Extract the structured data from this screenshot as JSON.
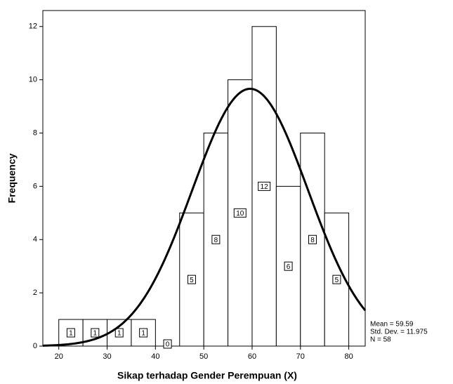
{
  "chart_data": {
    "type": "histogram",
    "x_label": "Sikap terhadap Gender Perempuan (X)",
    "y_label": "Frequency",
    "bins": [
      20,
      25,
      30,
      35,
      40,
      45,
      50,
      55,
      60,
      65,
      70,
      75,
      80
    ],
    "values": [
      1,
      1,
      1,
      1,
      0,
      5,
      8,
      10,
      12,
      6,
      8,
      5
    ],
    "xlim": [
      16.7,
      83.4
    ],
    "ylim": [
      0,
      12.6
    ],
    "xticks": [
      20,
      30,
      40,
      50,
      60,
      70,
      80
    ],
    "yticks": [
      0,
      2,
      4,
      6,
      8,
      10,
      12
    ],
    "normal_curve": {
      "mean": 59.59,
      "std_dev": 11.975,
      "n": 58
    },
    "annotations": [
      "Mean = 59.59",
      "Std. Dev. = 11.975",
      "N = 58"
    ]
  }
}
